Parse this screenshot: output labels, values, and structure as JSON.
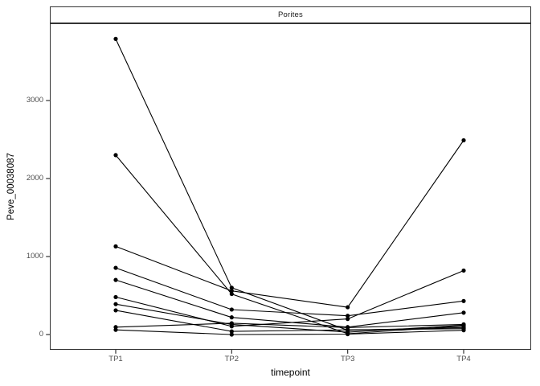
{
  "chart_data": {
    "type": "line",
    "title": "Porites",
    "xlabel": "timepoint",
    "ylabel": "Peve_00038087",
    "categories": [
      "TP1",
      "TP2",
      "TP3",
      "TP4"
    ],
    "yticks": [
      0,
      1000,
      2000,
      3000
    ],
    "ylim": [
      -190,
      3990
    ],
    "grid": false,
    "legend_position": "none",
    "point_color": "#000000",
    "line_color": "#000000",
    "border_color": "#333333",
    "series": [
      {
        "values": [
          3790,
          600,
          55,
          90
        ]
      },
      {
        "values": [
          2300,
          520,
          10,
          110
        ]
      },
      {
        "values": [
          1130,
          560,
          350,
          2490
        ]
      },
      {
        "values": [
          855,
          320,
          240,
          430
        ]
      },
      {
        "values": [
          700,
          220,
          95,
          280
        ]
      },
      {
        "values": [
          480,
          105,
          200,
          820
        ]
      },
      {
        "values": [
          390,
          130,
          30,
          120
        ]
      },
      {
        "values": [
          310,
          40,
          60,
          75
        ]
      },
      {
        "values": [
          95,
          145,
          90,
          130
        ]
      },
      {
        "values": [
          60,
          0,
          5,
          55
        ]
      }
    ]
  }
}
